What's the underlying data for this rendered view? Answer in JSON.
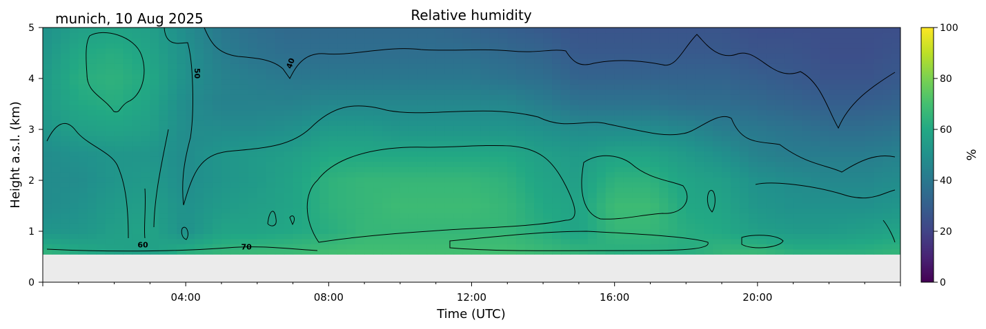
{
  "chart_data": {
    "type": "heatmap",
    "title": "Relative humidity",
    "location_date": "munich, 10 Aug 2025",
    "xlabel": "Time (UTC)",
    "ylabel": "Height a.s.l. (km)",
    "xlim_hours": [
      0,
      24
    ],
    "ylim": [
      0,
      5
    ],
    "x_ticks": [
      {
        "hour": 4,
        "label": "04:00"
      },
      {
        "hour": 8,
        "label": "08:00"
      },
      {
        "hour": 12,
        "label": "12:00"
      },
      {
        "hour": 16,
        "label": "16:00"
      },
      {
        "hour": 20,
        "label": "20:00"
      }
    ],
    "y_ticks": [
      {
        "value": 0,
        "label": "0"
      },
      {
        "value": 1,
        "label": "1"
      },
      {
        "value": 2,
        "label": "2"
      },
      {
        "value": 3,
        "label": "3"
      },
      {
        "value": 4,
        "label": "4"
      },
      {
        "value": 5,
        "label": "5"
      }
    ],
    "data_bottom_km": 0.55,
    "colorbar": {
      "label": "%",
      "range": [
        0,
        100
      ],
      "colormap": "viridis",
      "ticks": [
        {
          "value": 0,
          "label": "0"
        },
        {
          "value": 20,
          "label": "20"
        },
        {
          "value": 40,
          "label": "40"
        },
        {
          "value": 60,
          "label": "60"
        },
        {
          "value": 80,
          "label": "80"
        },
        {
          "value": 100,
          "label": "100"
        }
      ]
    },
    "contour_labels": [
      {
        "text": "40",
        "hour": 7.0,
        "km": 4.28,
        "rotate": -70
      },
      {
        "text": "50",
        "hour": 4.25,
        "km": 4.1,
        "rotate": 90
      },
      {
        "text": "60",
        "hour": 2.8,
        "km": 0.68,
        "rotate": 0
      },
      {
        "text": "70",
        "hour": 5.7,
        "km": 0.64,
        "rotate": 0
      }
    ],
    "humidity_profile": {
      "times_hours": [
        0,
        1,
        2,
        3,
        4,
        5,
        6,
        7,
        8,
        9,
        10,
        11,
        12,
        13,
        14,
        15,
        16,
        17,
        18,
        19,
        20,
        21,
        22,
        23,
        24
      ],
      "heights_km": [
        0.55,
        1.0,
        1.5,
        2.0,
        2.5,
        3.0,
        3.5,
        4.0,
        4.5,
        5.0
      ],
      "values_percent": [
        [
          66,
          62,
          58,
          56,
          64,
          66,
          68,
          68,
          70,
          70,
          70,
          70,
          70,
          70,
          68,
          66,
          62,
          62,
          62,
          66,
          68,
          64,
          64,
          64,
          66
        ],
        [
          52,
          52,
          56,
          58,
          50,
          58,
          58,
          60,
          62,
          66,
          66,
          66,
          66,
          66,
          62,
          58,
          66,
          66,
          62,
          60,
          56,
          54,
          54,
          56,
          58
        ],
        [
          48,
          50,
          54,
          56,
          50,
          54,
          56,
          58,
          64,
          66,
          68,
          68,
          68,
          66,
          60,
          58,
          68,
          68,
          60,
          58,
          52,
          50,
          50,
          50,
          52
        ],
        [
          48,
          48,
          52,
          54,
          48,
          52,
          54,
          58,
          64,
          66,
          66,
          66,
          66,
          64,
          58,
          56,
          64,
          64,
          58,
          56,
          50,
          48,
          46,
          46,
          48
        ],
        [
          48,
          50,
          52,
          52,
          48,
          52,
          54,
          56,
          60,
          60,
          60,
          60,
          60,
          60,
          56,
          54,
          58,
          58,
          54,
          50,
          44,
          42,
          42,
          42,
          44
        ],
        [
          52,
          56,
          58,
          56,
          48,
          48,
          48,
          50,
          54,
          54,
          52,
          52,
          52,
          52,
          50,
          48,
          48,
          48,
          46,
          42,
          40,
          38,
          36,
          36,
          38
        ],
        [
          54,
          60,
          62,
          58,
          48,
          44,
          44,
          44,
          46,
          46,
          46,
          46,
          46,
          46,
          42,
          38,
          38,
          38,
          36,
          36,
          34,
          32,
          30,
          30,
          32
        ],
        [
          54,
          62,
          64,
          60,
          50,
          44,
          42,
          40,
          40,
          40,
          40,
          40,
          40,
          38,
          36,
          32,
          32,
          32,
          32,
          32,
          30,
          28,
          26,
          26,
          28
        ],
        [
          52,
          60,
          62,
          58,
          50,
          42,
          38,
          36,
          36,
          36,
          36,
          36,
          36,
          34,
          32,
          28,
          28,
          28,
          28,
          28,
          26,
          26,
          24,
          24,
          26
        ],
        [
          50,
          56,
          58,
          56,
          48,
          40,
          36,
          34,
          34,
          34,
          34,
          34,
          32,
          30,
          28,
          26,
          26,
          26,
          26,
          26,
          24,
          24,
          24,
          24,
          24
        ]
      ]
    }
  }
}
